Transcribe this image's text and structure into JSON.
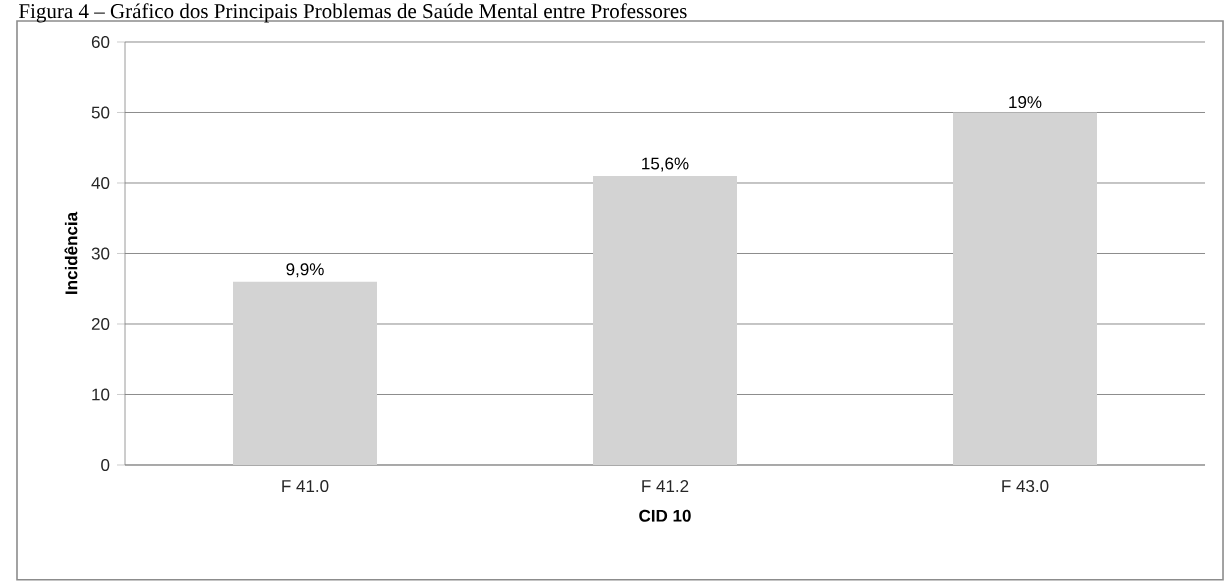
{
  "chart_data": {
    "type": "bar",
    "title": "Figura 4 – Gráfico dos Principais Problemas de Saúde Mental entre Professores",
    "xlabel": "CID 10",
    "ylabel": "Incidência",
    "categories": [
      "F 41.0",
      "F 41.2",
      "F 43.0"
    ],
    "values": [
      26,
      41,
      50
    ],
    "color": "#d3d3d3",
    "annotations": [
      {
        "text": "9,9%",
        "x": "F 41.0",
        "y": 26
      },
      {
        "text": "15,6%",
        "x": "F 41.2",
        "y": 41
      },
      {
        "text": "19%",
        "x": "F 43.0",
        "y": 50
      }
    ],
    "ylim": [
      0,
      60
    ],
    "yticks": [
      0,
      10,
      20,
      30,
      40,
      50,
      60
    ],
    "grid": "y"
  }
}
